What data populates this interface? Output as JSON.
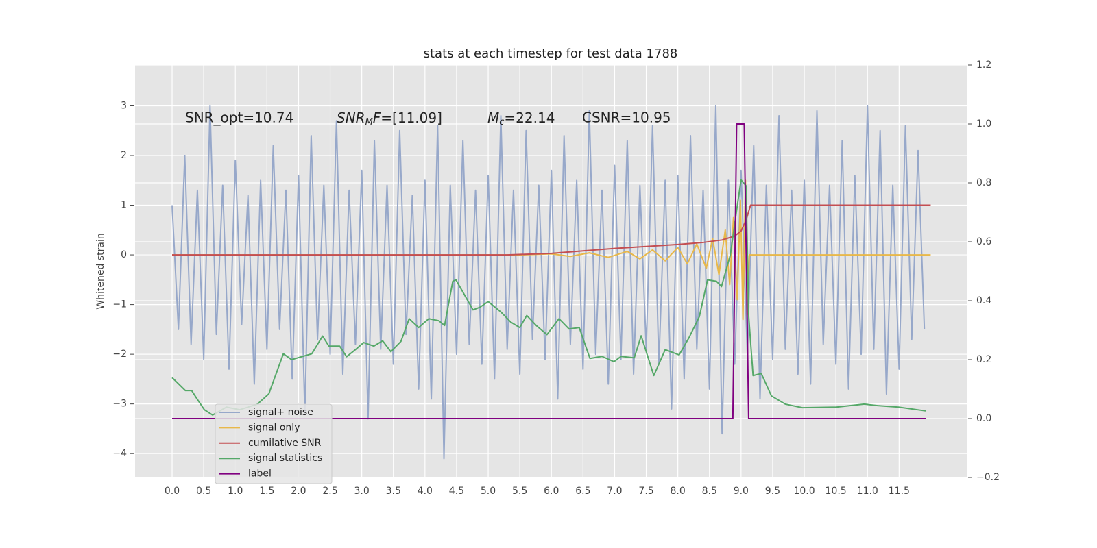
{
  "chart_data": {
    "type": "line",
    "title": "stats at each timestep for test data 1788",
    "y_label": "Whitened strain",
    "annotations": [
      {
        "text": "SNR_opt=10.74"
      },
      {
        "parts": [
          "SNR",
          "M",
          "F",
          "=[11.09]"
        ]
      },
      {
        "parts": [
          "M",
          "c",
          "=22.14"
        ]
      },
      {
        "text": "CSNR=10.95"
      }
    ],
    "grid": true,
    "xlim": [
      -0.586,
      12.57
    ],
    "ylim": [
      -4.48,
      3.82
    ],
    "y2lim": [
      -0.2,
      1.2
    ],
    "xticks": [
      {
        "value": 0,
        "label": "0.0"
      },
      {
        "value": 0.5,
        "label": "0.5"
      },
      {
        "value": 1,
        "label": "1.0"
      },
      {
        "value": 1.5,
        "label": "1.5"
      },
      {
        "value": 2,
        "label": "2.0"
      },
      {
        "value": 2.5,
        "label": "2.5"
      },
      {
        "value": 3,
        "label": "3.0"
      },
      {
        "value": 3.5,
        "label": "3.5"
      },
      {
        "value": 4,
        "label": "4.0"
      },
      {
        "value": 4.5,
        "label": "4.5"
      },
      {
        "value": 5,
        "label": "5.0"
      },
      {
        "value": 5.5,
        "label": "5.5"
      },
      {
        "value": 6,
        "label": "6.0"
      },
      {
        "value": 6.5,
        "label": "6.5"
      },
      {
        "value": 7,
        "label": "7.0"
      },
      {
        "value": 7.5,
        "label": "7.5"
      },
      {
        "value": 8,
        "label": "8.0"
      },
      {
        "value": 8.5,
        "label": "8.5"
      },
      {
        "value": 9,
        "label": "9.0"
      },
      {
        "value": 9.5,
        "label": "9.5"
      },
      {
        "value": 10,
        "label": "10.0"
      },
      {
        "value": 10.5,
        "label": "10.5"
      },
      {
        "value": 11,
        "label": "11.0"
      },
      {
        "value": 11.5,
        "label": "11.5"
      }
    ],
    "yticks": [
      {
        "value": -4,
        "label": "−4"
      },
      {
        "value": -3,
        "label": "−3"
      },
      {
        "value": -2,
        "label": "−2"
      },
      {
        "value": -1,
        "label": "−1"
      },
      0,
      1,
      2,
      3
    ],
    "y2ticks": [
      {
        "value": -0.2,
        "label": "−0.2"
      },
      {
        "value": 0,
        "label": "0.0"
      },
      {
        "value": 0.2,
        "label": "0.2"
      },
      {
        "value": 0.4,
        "label": "0.4"
      },
      {
        "value": 0.6,
        "label": "0.6"
      },
      {
        "value": 0.8,
        "label": "0.8"
      },
      {
        "value": 1.0,
        "label": "1.0"
      },
      {
        "value": 1.2,
        "label": "1.2"
      }
    ],
    "series": [
      {
        "name": "signal+ noise",
        "color": "#97a8ca",
        "x": [
          0,
          0.1,
          0.2,
          0.3,
          0.4,
          0.5,
          0.6,
          0.7,
          0.8,
          0.9,
          1,
          1.1,
          1.2,
          1.3,
          1.4,
          1.5,
          1.6,
          1.7,
          1.8,
          1.9,
          2,
          2.1,
          2.2,
          2.3,
          2.4,
          2.5,
          2.6,
          2.7,
          2.8,
          2.9,
          3,
          3.1,
          3.2,
          3.3,
          3.4,
          3.5,
          3.6,
          3.7,
          3.8,
          3.9,
          4,
          4.1,
          4.2,
          4.3,
          4.4,
          4.5,
          4.6,
          4.7,
          4.8,
          4.9,
          5,
          5.1,
          5.2,
          5.3,
          5.4,
          5.5,
          5.6,
          5.7,
          5.8,
          5.9,
          6,
          6.1,
          6.2,
          6.3,
          6.4,
          6.5,
          6.6,
          6.7,
          6.8,
          6.9,
          7,
          7.1,
          7.2,
          7.3,
          7.4,
          7.5,
          7.6,
          7.7,
          7.8,
          7.9,
          8,
          8.1,
          8.2,
          8.3,
          8.4,
          8.5,
          8.6,
          8.7,
          8.8,
          8.9,
          9,
          9.1,
          9.2,
          9.3,
          9.4,
          9.5,
          9.6,
          9.7,
          9.8,
          9.9,
          10,
          10.1,
          10.2,
          10.3,
          10.4,
          10.5,
          10.6,
          10.7,
          10.8,
          10.9,
          11,
          11.1,
          11.2,
          11.3,
          11.4,
          11.5,
          11.6,
          11.7,
          11.8,
          11.9
        ],
        "values": [
          1.0,
          -1.5,
          2.0,
          -1.8,
          1.3,
          -2.1,
          3.0,
          -1.6,
          1.4,
          -2.3,
          1.9,
          -1.4,
          1.2,
          -2.6,
          1.5,
          -1.9,
          2.2,
          -1.5,
          1.3,
          -2.5,
          1.6,
          -3.2,
          2.4,
          -1.7,
          1.4,
          -2.0,
          2.7,
          -2.4,
          1.3,
          -1.8,
          1.7,
          -3.3,
          2.3,
          -1.9,
          1.4,
          -2.2,
          2.5,
          -1.6,
          1.2,
          -2.7,
          1.5,
          -2.9,
          2.6,
          -4.1,
          1.4,
          -2.0,
          2.3,
          -1.8,
          1.3,
          -2.2,
          1.6,
          -2.5,
          2.8,
          -1.9,
          1.3,
          -2.4,
          2.5,
          -1.7,
          1.4,
          -2.1,
          1.7,
          -2.9,
          2.4,
          -1.8,
          1.5,
          -2.3,
          2.9,
          -2.0,
          1.3,
          -2.6,
          1.8,
          -2.1,
          2.3,
          -2.4,
          1.4,
          -1.9,
          2.6,
          -2.2,
          1.5,
          -3.1,
          1.6,
          -2.5,
          2.4,
          -1.9,
          1.3,
          -2.7,
          3.0,
          -3.6,
          1.5,
          -2.2,
          1.7,
          -2.0,
          2.2,
          -2.9,
          1.4,
          -2.1,
          2.8,
          -1.9,
          1.3,
          -2.4,
          1.5,
          -2.6,
          2.9,
          -1.8,
          1.4,
          -2.2,
          2.3,
          -2.7,
          1.6,
          -2.0,
          3.0,
          -1.9,
          2.5,
          -2.8,
          1.4,
          -2.3,
          2.6,
          -1.7,
          2.1,
          -1.5
        ]
      },
      {
        "name": "signal only",
        "color": "#e8b84a",
        "x": [
          0,
          5.5,
          6.0,
          6.3,
          6.6,
          6.9,
          7.2,
          7.4,
          7.6,
          7.8,
          8.0,
          8.15,
          8.3,
          8.45,
          8.55,
          8.65,
          8.75,
          8.82,
          8.88,
          8.94,
          8.99,
          9.03,
          9.07,
          9.1,
          9.13,
          12.0
        ],
        "values": [
          0,
          0,
          0.02,
          -0.03,
          0.04,
          -0.05,
          0.07,
          -0.08,
          0.1,
          -0.12,
          0.15,
          -0.18,
          0.22,
          -0.27,
          0.33,
          -0.4,
          0.5,
          -0.6,
          0.75,
          -0.9,
          1.1,
          -1.3,
          1.5,
          -1.2,
          0,
          0
        ]
      },
      {
        "name": "cumilative SNR",
        "color": "#c44e52",
        "x": [
          0,
          5.3,
          6.0,
          6.5,
          7.0,
          7.5,
          8.0,
          8.4,
          8.7,
          8.9,
          9.0,
          9.08,
          9.15,
          12.0
        ],
        "values": [
          0,
          0,
          0.03,
          0.08,
          0.13,
          0.17,
          0.21,
          0.25,
          0.3,
          0.38,
          0.48,
          0.7,
          1.0,
          1.0
        ]
      },
      {
        "name": "signal statistics",
        "color": "#55a868",
        "axis": "y2",
        "x": [
          0,
          0.12,
          0.21,
          0.31,
          0.4,
          0.51,
          0.64,
          0.86,
          1.07,
          1.35,
          1.53,
          1.76,
          1.89,
          2.05,
          2.21,
          2.38,
          2.48,
          2.65,
          2.76,
          2.9,
          3.03,
          3.19,
          3.33,
          3.46,
          3.62,
          3.75,
          3.9,
          4.06,
          4.22,
          4.31,
          4.44,
          4.49,
          4.76,
          4.87,
          5.0,
          5.2,
          5.36,
          5.5,
          5.61,
          5.76,
          5.93,
          6.12,
          6.28,
          6.44,
          6.61,
          6.8,
          6.99,
          7.1,
          7.31,
          7.42,
          7.62,
          7.8,
          8.02,
          8.18,
          8.34,
          8.47,
          8.61,
          8.69,
          8.83,
          8.94,
          9.0,
          9.08,
          9.12,
          9.19,
          9.32,
          9.48,
          9.7,
          9.97,
          10.51,
          10.95,
          11.16,
          11.49,
          11.92
        ],
        "values": [
          0.139,
          0.114,
          0.095,
          0.095,
          0.065,
          0.03,
          0.012,
          0.039,
          0.03,
          0.049,
          0.084,
          0.22,
          0.2,
          0.21,
          0.22,
          0.28,
          0.246,
          0.246,
          0.21,
          0.234,
          0.258,
          0.246,
          0.264,
          0.227,
          0.262,
          0.339,
          0.309,
          0.339,
          0.332,
          0.316,
          0.466,
          0.471,
          0.369,
          0.378,
          0.397,
          0.362,
          0.327,
          0.309,
          0.35,
          0.316,
          0.285,
          0.339,
          0.304,
          0.309,
          0.204,
          0.211,
          0.193,
          0.211,
          0.206,
          0.281,
          0.146,
          0.234,
          0.216,
          0.276,
          0.346,
          0.471,
          0.466,
          0.448,
          0.555,
          0.722,
          0.81,
          0.79,
          0.35,
          0.146,
          0.153,
          0.077,
          0.049,
          0.037,
          0.039,
          0.049,
          0.044,
          0.039,
          0.026
        ]
      },
      {
        "name": "label",
        "color": "#800080",
        "axis": "y2",
        "x": [
          0,
          8.87,
          8.93,
          9.05,
          9.12,
          11.92
        ],
        "values": [
          0,
          0,
          1,
          1,
          0,
          0
        ]
      }
    ]
  }
}
